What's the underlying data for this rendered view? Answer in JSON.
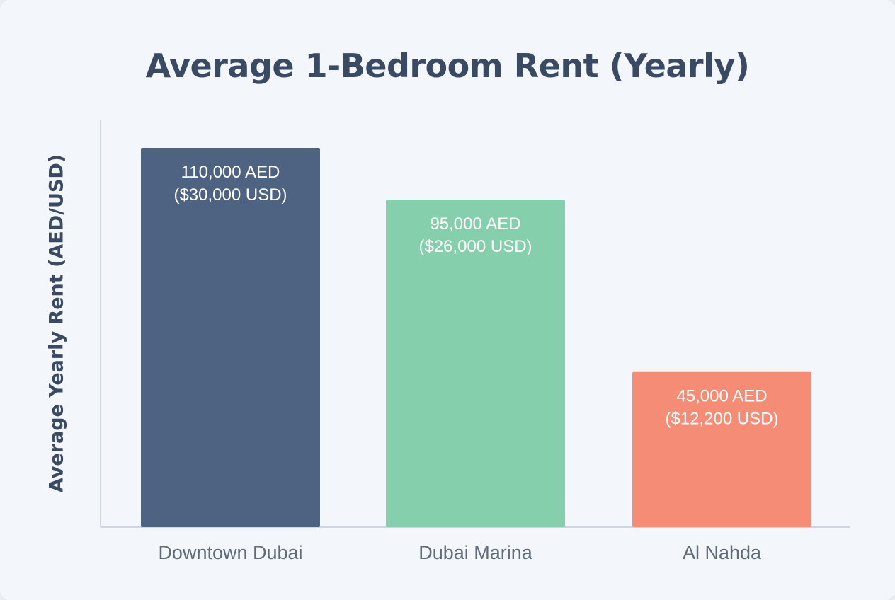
{
  "chart_data": {
    "type": "bar",
    "title": "Average 1-Bedroom Rent (Yearly)",
    "xlabel": "",
    "ylabel": "Average Yearly Rent (AED/USD)",
    "categories": [
      "Downtown Dubai",
      "Dubai Marina",
      "Al Nahda"
    ],
    "values": [
      110000,
      95000,
      45000
    ],
    "data_labels": [
      [
        "110,000 AED",
        "($30,000 USD)"
      ],
      [
        "95,000 AED",
        "($26,000 USD)"
      ],
      [
        "45,000 AED",
        "($12,200 USD)"
      ]
    ],
    "colors": [
      "#4e6282",
      "#86cfad",
      "#f48c76"
    ],
    "ylim": [
      0,
      118000
    ],
    "grid": false,
    "y_ticks_shown": false
  }
}
